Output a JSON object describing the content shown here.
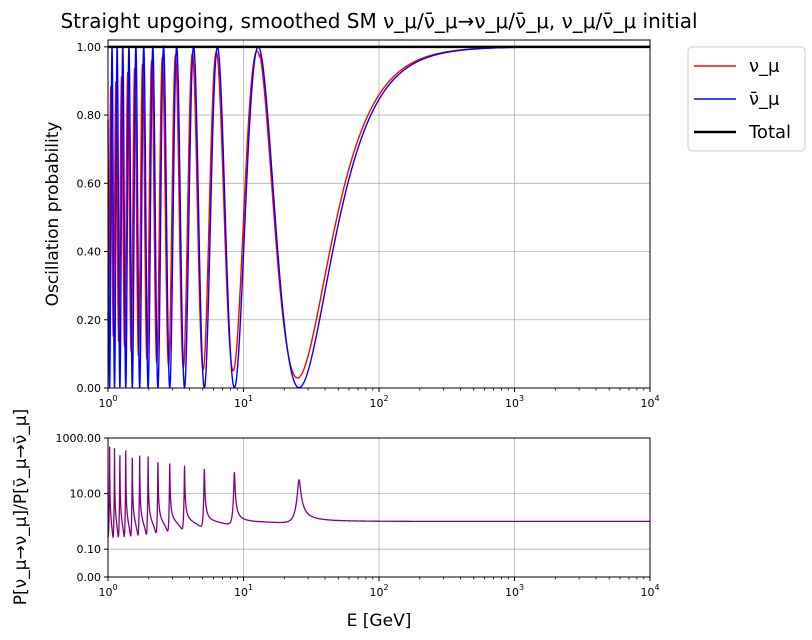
{
  "chart_data": [
    {
      "type": "line",
      "title": "Straight upgoing, smoothed SM ν_μ/ν̄_μ→ν_μ/ν̄_μ, ν_μ/ν̄_μ initial",
      "xlabel": "",
      "ylabel": "Oscillation probability",
      "xscale": "log",
      "xlim": [
        1,
        10000
      ],
      "ylim": [
        0,
        1.02
      ],
      "grid": true,
      "legend_position": "outside-top-right",
      "x_ticks": [
        {
          "value": 1,
          "base": "10",
          "exp": "0"
        },
        {
          "value": 10,
          "base": "10",
          "exp": "1"
        },
        {
          "value": 100,
          "base": "10",
          "exp": "2"
        },
        {
          "value": 1000,
          "base": "10",
          "exp": "3"
        },
        {
          "value": 10000,
          "base": "10",
          "exp": "4"
        }
      ],
      "y_ticks": [
        {
          "value": 0,
          "label": "0.00"
        },
        {
          "value": 0.2,
          "label": "0.20"
        },
        {
          "value": 0.4,
          "label": "0.40"
        },
        {
          "value": 0.6,
          "label": "0.60"
        },
        {
          "value": 0.8,
          "label": "0.80"
        },
        {
          "value": 1.0,
          "label": "1.00"
        }
      ],
      "series": [
        {
          "name": "ν_μ",
          "color": "#ff0000",
          "model": {
            "L_km": 12742,
            "dm2": 0.00245,
            "mix": 0.999,
            "contrast": 0.94,
            "smear": 0.65
          }
        },
        {
          "name": "ν̄_μ",
          "color": "#0000ff",
          "model": {
            "L_km": 12742,
            "dm2": 0.0025,
            "mix": 0.999,
            "contrast": 1.0,
            "smear": 0.0
          }
        },
        {
          "name": "Total",
          "color": "#000000",
          "values": [
            {
              "x": 1,
              "y": 1.0
            },
            {
              "x": 10000,
              "y": 1.0
            }
          ]
        }
      ]
    },
    {
      "type": "line",
      "title": "",
      "xlabel": "E [GeV]",
      "ylabel": "P[ν_μ→ν_μ]/P[ν̄_μ→ν̄_μ]",
      "xscale": "log",
      "yscale": "log",
      "xlim": [
        1,
        10000
      ],
      "ylim": [
        0.01,
        1000
      ],
      "grid": true,
      "x_ticks": [
        {
          "value": 1,
          "base": "10",
          "exp": "0"
        },
        {
          "value": 10,
          "base": "10",
          "exp": "1"
        },
        {
          "value": 100,
          "base": "10",
          "exp": "2"
        },
        {
          "value": 1000,
          "base": "10",
          "exp": "3"
        },
        {
          "value": 10000,
          "base": "10",
          "exp": "4"
        }
      ],
      "y_ticks": [
        {
          "value": 0.01,
          "label": "0.00"
        },
        {
          "value": 0.1,
          "label": "0.10"
        },
        {
          "value": 10,
          "label": "10.00"
        },
        {
          "value": 1000,
          "label": "1000.00"
        }
      ],
      "series": [
        {
          "name": "ratio",
          "color": "#800080",
          "derived": "ratio of series 0 to series 1"
        }
      ]
    }
  ]
}
